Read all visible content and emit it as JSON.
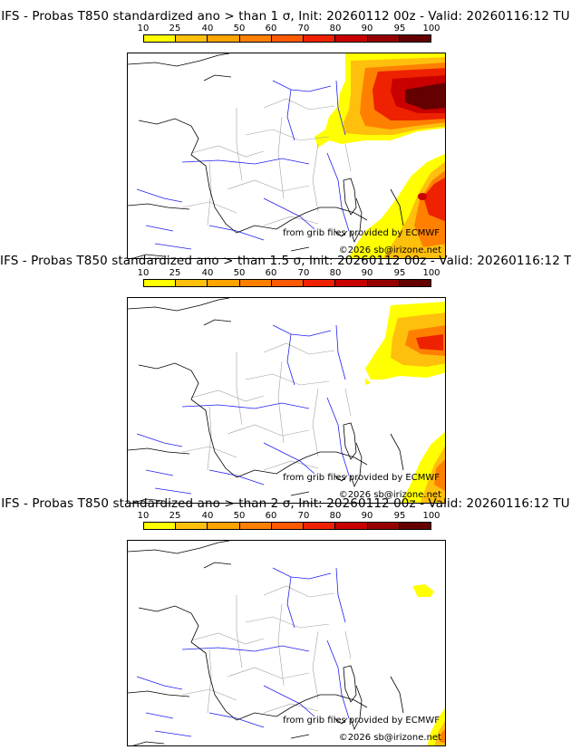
{
  "colors": {
    "scale": [
      "#ffff00",
      "#ffe01a",
      "#ffbf0d",
      "#ffa300",
      "#ff8000",
      "#ff5a00",
      "#ee2200",
      "#c80000",
      "#960000",
      "#640000"
    ],
    "coast": "#000000",
    "rivers": "#2020ee",
    "borders": "#a0a0a0"
  },
  "colorbar": {
    "labels": [
      "10",
      "25",
      "40",
      "50",
      "60",
      "70",
      "80",
      "90",
      "95",
      "100"
    ]
  },
  "credits": {
    "source": "from grib files provided by ECMWF",
    "copyright": "©2026 sb@irizone.net"
  },
  "panels": [
    {
      "title": "IFS - Probas T850  standardized ano > than 1 σ, Init: 20260112 00z - Valid: 20260116:12 TU"
    },
    {
      "title": "IFS - Probas T850  standardized ano > than 1.5 σ, Init: 20260112 00z - Valid: 20260116:12 TU"
    },
    {
      "title": "IFS - Probas T850  standardized ano > than 2 σ, Init: 20260112 00z - Valid: 20260116:12 TU"
    }
  ]
}
